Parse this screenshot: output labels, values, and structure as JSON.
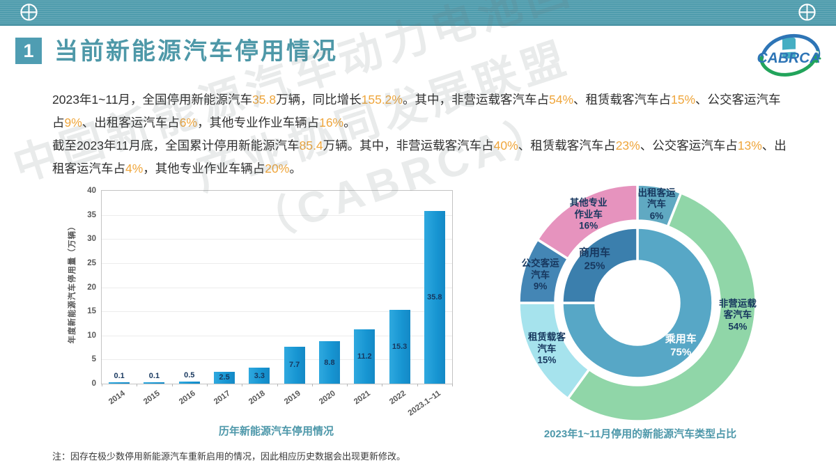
{
  "colors": {
    "band_teal": "#4F9CAD",
    "accent_teal": "#4E98AA",
    "highlight_orange": "#EFA63C",
    "bar_blue": "#1B9AD6",
    "label_navy": "#17375E",
    "logo_blue": "#2E75B6",
    "logo_green": "#22A45B"
  },
  "icons": {
    "band_left": "crosshair-globe",
    "band_right": "crosshair-globe",
    "logo": "cabrca-battery-recycle-emblem"
  },
  "slide": {
    "badge": "1",
    "title": "当前新能源汽车停用情况",
    "logo_text": "CABRCA",
    "watermark": {
      "lines": [
        "中国新能源汽车动力电池回收利用",
        "产业协同发展联盟",
        "（CABRCA）"
      ]
    },
    "paragraphs": [
      {
        "segments": [
          {
            "t": "2023年1~11月，全国停用新能源汽车",
            "hl": false
          },
          {
            "t": "35.8",
            "hl": true
          },
          {
            "t": "万辆，同比增长",
            "hl": false
          },
          {
            "t": "155.2%",
            "hl": true
          },
          {
            "t": "。其中，非营运载客汽车占",
            "hl": false
          },
          {
            "t": "54%",
            "hl": true
          },
          {
            "t": "、租赁载客汽车占",
            "hl": false
          },
          {
            "t": "15%",
            "hl": true
          },
          {
            "t": "、公交客运汽车占",
            "hl": false
          },
          {
            "t": "9%",
            "hl": true
          },
          {
            "t": "、出租客运汽车占",
            "hl": false
          },
          {
            "t": "6%",
            "hl": true
          },
          {
            "t": "，其他专业作业车辆占",
            "hl": false
          },
          {
            "t": "16%",
            "hl": true
          },
          {
            "t": "。",
            "hl": false
          }
        ]
      },
      {
        "segments": [
          {
            "t": "截至2023年11月底，全国累计停用新能源汽车",
            "hl": false
          },
          {
            "t": "85.4",
            "hl": true
          },
          {
            "t": "万辆。其中，非营运载客汽车占",
            "hl": false
          },
          {
            "t": "40%",
            "hl": true
          },
          {
            "t": "、租赁载客汽车占",
            "hl": false
          },
          {
            "t": "23%",
            "hl": true
          },
          {
            "t": "、公交客运汽车占",
            "hl": false
          },
          {
            "t": "13%",
            "hl": true
          },
          {
            "t": "、出租客运汽车占",
            "hl": false
          },
          {
            "t": "4%",
            "hl": true
          },
          {
            "t": "，其他专业作业车辆占",
            "hl": false
          },
          {
            "t": "20%",
            "hl": true
          },
          {
            "t": "。",
            "hl": false
          }
        ]
      }
    ],
    "note": "注：因存在极少数停用新能源汽车重新启用的情况，因此相应历史数据会出现更新修改。"
  },
  "chart_data": [
    {
      "type": "bar",
      "title": "历年新能源汽车停用情况",
      "xlabel": "",
      "ylabel": "年度新能源汽车停用量（万辆）",
      "categories": [
        "2014",
        "2015",
        "2016",
        "2017",
        "2018",
        "2019",
        "2020",
        "2021",
        "2022",
        "2023.1~11"
      ],
      "values": [
        0.1,
        0.1,
        0.5,
        2.5,
        3.3,
        7.7,
        8.8,
        11.2,
        15.3,
        35.8
      ],
      "ylim": [
        0,
        40
      ],
      "ytick_step": 5,
      "grid": true,
      "legend": "none",
      "bar_color": "#1B9AD6",
      "value_label_color": "#17375E"
    },
    {
      "type": "pie",
      "subtype": "two-ring-donut",
      "title": "2023年1~11月停用的新能源汽车类型占比",
      "legend": "labels-on-slices",
      "inner_ring": [
        {
          "label": "乘用车",
          "value": 75,
          "color": "#57A7C6",
          "text_color": "#FFFFFF",
          "label_lines": [
            "乘用车",
            "75%"
          ],
          "label_angle": 135,
          "label_radius": 88
        },
        {
          "label": "商用车",
          "value": 25,
          "color": "#3B7FAD",
          "text_color": "#17375E",
          "label_lines": [
            "商用车",
            "25%"
          ],
          "label_angle": 315,
          "label_radius": 87
        }
      ],
      "outer_ring": [
        {
          "label": "出租客运汽车",
          "value": 6,
          "color": "#60A9C2",
          "label_lines": [
            "出租客运",
            "汽车",
            "6%"
          ],
          "label_angle": 11,
          "label_radius": 144
        },
        {
          "label": "非营运载客汽车",
          "value": 54,
          "color": "#90D6A8",
          "label_lines": [
            "非营运载",
            "客汽车",
            "54%"
          ],
          "label_angle": 97,
          "label_radius": 145
        },
        {
          "label": "租赁载客汽车",
          "value": 15,
          "color": "#A6E3ED",
          "label_lines": [
            "租赁载客",
            "汽车",
            "15%"
          ],
          "label_angle": 243,
          "label_radius": 146
        },
        {
          "label": "公交客运汽车",
          "value": 9,
          "color": "#4486B5",
          "label_lines": [
            "公交客运",
            "汽车",
            "9%"
          ],
          "label_angle": 286,
          "label_radius": 145
        },
        {
          "label": "其他专业作业车",
          "value": 16,
          "color": "#E693BE",
          "label_lines": [
            "其他专业",
            "作业车",
            "16%"
          ],
          "label_angle": 331,
          "label_radius": 145
        }
      ]
    }
  ]
}
